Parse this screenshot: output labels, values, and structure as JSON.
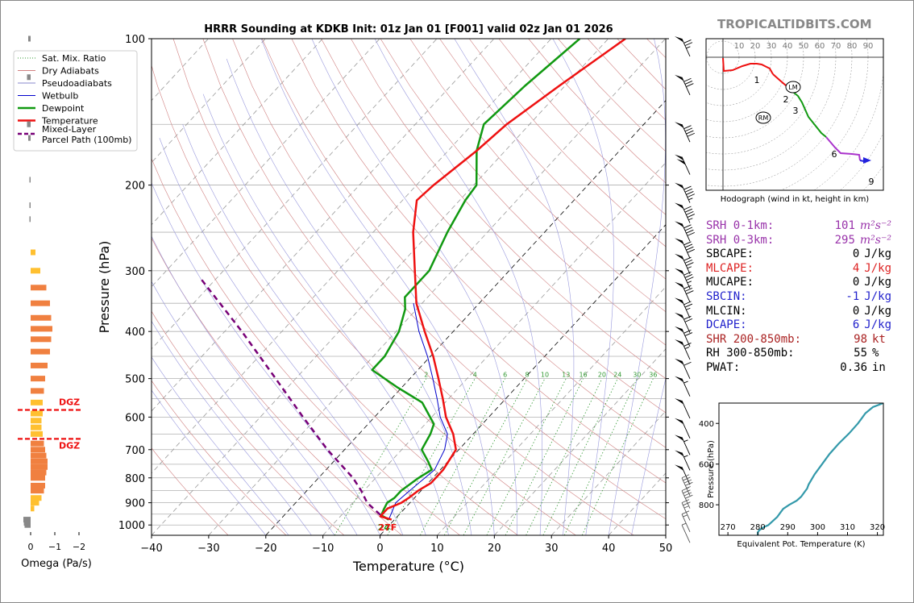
{
  "brand": "TROPICALTIDBITS.COM",
  "chart_data": {
    "type": "skewt",
    "title": "HRRR Sounding at KDKB Init: 01z Jan 01 [F001] valid 02z Jan 01 2026",
    "xlabel": "Temperature (°C)",
    "ylabel": "Pressure (hPa)",
    "xlim": [
      -40,
      50
    ],
    "ylim": [
      1050,
      100
    ],
    "x_ticks": [
      -40,
      -30,
      -20,
      -10,
      0,
      10,
      20,
      30,
      40,
      50
    ],
    "x_tick_labels": [
      "−40",
      "−30",
      "−20",
      "−10",
      "0",
      "10",
      "20",
      "30",
      "40",
      "50"
    ],
    "y_ticks": [
      100,
      200,
      300,
      400,
      500,
      600,
      700,
      800,
      900,
      1000
    ],
    "legend": [
      {
        "label": "Sat. Mix. Ratio",
        "color": "#339933",
        "style": "dotted"
      },
      {
        "label": "Dry Adiabats",
        "color": "#d08080",
        "style": "solid"
      },
      {
        "label": "Pseudoadiabats",
        "color": "#8888cc",
        "style": "solid"
      },
      {
        "label": "Wetbulb",
        "color": "#0000cc",
        "style": "solid"
      },
      {
        "label": "Dewpoint",
        "color": "#119911",
        "style": "solid"
      },
      {
        "label": "Temperature",
        "color": "#ee1111",
        "style": "solid"
      },
      {
        "label": "Mixed-Layer Parcel Path (100mb)",
        "color": "#770077",
        "style": "dashed"
      }
    ],
    "mixing_ratio_labels": [
      "2",
      "4",
      "6",
      "8",
      "10",
      "13",
      "16",
      "20",
      "24",
      "30",
      "36"
    ],
    "surface_td_label": "24",
    "surface_t_label": "27F",
    "temperature": {
      "p": [
        975,
        960,
        945,
        925,
        900,
        880,
        850,
        820,
        790,
        770,
        700,
        650,
        600,
        550,
        500,
        450,
        400,
        350,
        300,
        250,
        215,
        200,
        170,
        150,
        125,
        100
      ],
      "t": [
        -0.5,
        -3.0,
        -3.0,
        -3.0,
        -1.5,
        -1.0,
        -0.5,
        0.5,
        0.5,
        0.5,
        -0.5,
        -3.5,
        -7.5,
        -11.0,
        -15.0,
        -19.5,
        -25.0,
        -31.0,
        -36.5,
        -43.0,
        -47.5,
        -47.0,
        -45.0,
        -44.0,
        -41.0,
        -37.0
      ]
    },
    "dewpoint": {
      "p": [
        975,
        955,
        930,
        900,
        880,
        850,
        800,
        770,
        740,
        700,
        650,
        620,
        560,
        520,
        480,
        450,
        400,
        360,
        340,
        300,
        250,
        215,
        200,
        170,
        150,
        125,
        100
      ],
      "td": [
        -1.0,
        -3.0,
        -3.5,
        -4.0,
        -3.5,
        -3.5,
        -2.5,
        -1.5,
        -3.5,
        -6.5,
        -7.5,
        -8.5,
        -14.0,
        -21.0,
        -28.0,
        -28.0,
        -29.5,
        -32.0,
        -34.0,
        -34.0,
        -37.0,
        -39.0,
        -39.5,
        -45.0,
        -48.0,
        -47.0,
        -45.0
      ]
    },
    "wetbulb": {
      "p": [
        975,
        900,
        850,
        770,
        700,
        650,
        600,
        550,
        500,
        450,
        400,
        350
      ],
      "tw": [
        -1.0,
        -2.5,
        -2.0,
        -1.0,
        -2.5,
        -4.5,
        -8.5,
        -12.0,
        -16.0,
        -20.5,
        -26.0,
        -31.5
      ]
    },
    "parcel_path": {
      "p": [
        975,
        950,
        900,
        850,
        800,
        700,
        600,
        500,
        400,
        310
      ],
      "t": [
        -1.0,
        -3.5,
        -7.5,
        -10.5,
        -14.0,
        -23.0,
        -32.5,
        -43.5,
        -57.0,
        -73.0
      ]
    },
    "omega": {
      "xlabel": "Omega (Pa/s)",
      "x_ticks": [
        "0",
        "−1",
        "−2"
      ],
      "dgz_label": "DGZ",
      "dgz_levels": [
        580,
        665
      ],
      "bars": [
        [
          1000,
          0.25
        ],
        [
          990,
          0.28
        ],
        [
          975,
          0.3
        ],
        [
          925,
          -0.15
        ],
        [
          900,
          -0.35
        ],
        [
          880,
          -0.45
        ],
        [
          850,
          -0.55
        ],
        [
          830,
          -0.6
        ],
        [
          800,
          -0.6
        ],
        [
          780,
          -0.65
        ],
        [
          760,
          -0.7
        ],
        [
          740,
          -0.7
        ],
        [
          720,
          -0.65
        ],
        [
          700,
          -0.6
        ],
        [
          680,
          -0.55
        ],
        [
          650,
          -0.5
        ],
        [
          630,
          -0.45
        ],
        [
          610,
          -0.45
        ],
        [
          590,
          -0.5
        ],
        [
          560,
          -0.5
        ],
        [
          530,
          -0.55
        ],
        [
          500,
          -0.6
        ],
        [
          470,
          -0.7
        ],
        [
          440,
          -0.8
        ],
        [
          415,
          -0.85
        ],
        [
          395,
          -0.9
        ],
        [
          375,
          -0.85
        ],
        [
          350,
          -0.8
        ],
        [
          325,
          -0.65
        ],
        [
          300,
          -0.4
        ],
        [
          275,
          -0.2
        ],
        [
          235,
          0.05
        ],
        [
          220,
          0.05
        ],
        [
          195,
          0.05
        ],
        [
          160,
          0.1
        ],
        [
          150,
          0.15
        ],
        [
          120,
          0.15
        ],
        [
          100,
          0.1
        ]
      ]
    },
    "wind_barbs": [
      {
        "p": 100,
        "kt": 75,
        "color": "black"
      },
      {
        "p": 120,
        "kt": 80,
        "color": "black"
      },
      {
        "p": 150,
        "kt": 90,
        "color": "black"
      },
      {
        "p": 175,
        "kt": 100,
        "color": "black"
      },
      {
        "p": 200,
        "kt": 95,
        "color": "black"
      },
      {
        "p": 220,
        "kt": 95,
        "color": "black"
      },
      {
        "p": 240,
        "kt": 90,
        "color": "black"
      },
      {
        "p": 260,
        "kt": 90,
        "color": "black"
      },
      {
        "p": 280,
        "kt": 85,
        "color": "black"
      },
      {
        "p": 300,
        "kt": 85,
        "color": "black"
      },
      {
        "p": 320,
        "kt": 80,
        "color": "black"
      },
      {
        "p": 345,
        "kt": 75,
        "color": "black"
      },
      {
        "p": 370,
        "kt": 70,
        "color": "black"
      },
      {
        "p": 395,
        "kt": 70,
        "color": "black"
      },
      {
        "p": 420,
        "kt": 65,
        "color": "black"
      },
      {
        "p": 460,
        "kt": 60,
        "color": "black"
      },
      {
        "p": 500,
        "kt": 55,
        "color": "black"
      },
      {
        "p": 555,
        "kt": 50,
        "color": "black"
      },
      {
        "p": 610,
        "kt": 50,
        "color": "black"
      },
      {
        "p": 660,
        "kt": 55,
        "color": "black"
      },
      {
        "p": 710,
        "kt": 55,
        "color": "black"
      },
      {
        "p": 760,
        "kt": 50,
        "color": "black"
      },
      {
        "p": 800,
        "kt": 45,
        "color": "gray"
      },
      {
        "p": 850,
        "kt": 40,
        "color": "gray"
      },
      {
        "p": 900,
        "kt": 25,
        "color": "gray"
      },
      {
        "p": 950,
        "kt": 15,
        "color": "gray"
      },
      {
        "p": 1000,
        "kt": 5,
        "color": "gray"
      }
    ]
  },
  "hodograph": {
    "caption": "Hodograph (wind in kt, height in km)",
    "ring_labels": [
      "10",
      "20",
      "30",
      "40",
      "50",
      "60",
      "70",
      "80",
      "90"
    ],
    "height_labels": [
      "1",
      "2",
      "3",
      "6",
      "9"
    ],
    "storm_motion_labels": [
      "LM",
      "RM"
    ],
    "trace": [
      {
        "color": "#ee1111",
        "uv": [
          [
            0.0,
            -0.5
          ],
          [
            0.5,
            -8.5
          ],
          [
            6.0,
            -8.0
          ],
          [
            12.0,
            -5.5
          ],
          [
            17.0,
            -4.0
          ],
          [
            21.0,
            -4.0
          ],
          [
            24.0,
            -4.5
          ],
          [
            29.0,
            -7.0
          ],
          [
            31.0,
            -10.5
          ]
        ]
      },
      {
        "color": "#ee1111",
        "uv": [
          [
            31.0,
            -10.5
          ],
          [
            35.5,
            -14.5
          ],
          [
            39.0,
            -17.5
          ],
          [
            41.0,
            -19.5
          ]
        ]
      },
      {
        "color": "#119911",
        "uv": [
          [
            41.0,
            -19.5
          ],
          [
            46.5,
            -24.0
          ],
          [
            49.0,
            -28.0
          ],
          [
            53.0,
            -37.0
          ],
          [
            61.0,
            -47.0
          ],
          [
            64.0,
            -49.5
          ]
        ]
      },
      {
        "color": "#aa33cc",
        "uv": [
          [
            64.0,
            -49.5
          ],
          [
            69.5,
            -56.0
          ],
          [
            73.0,
            -59.5
          ],
          [
            80.0,
            -60.0
          ],
          [
            84.5,
            -60.5
          ],
          [
            85.0,
            -64.0
          ]
        ]
      },
      {
        "color": "#2222dd",
        "uv": [
          [
            85.0,
            -64.0
          ],
          [
            87.5,
            -64.5
          ]
        ]
      }
    ]
  },
  "theta_e_chart": {
    "type": "line",
    "xlabel": "Equivalent Pot. Temperature (K)",
    "ylabel": "Pressure (hPa)",
    "x_ticks": [
      270,
      280,
      290,
      300,
      310,
      320
    ],
    "y_ticks": [
      400,
      600,
      800
    ],
    "xlim": [
      267,
      322
    ],
    "ylim": [
      950,
      300
    ],
    "line_color": "#3399aa",
    "p": [
      950,
      935,
      925,
      910,
      900,
      880,
      860,
      840,
      820,
      800,
      780,
      760,
      740,
      720,
      700,
      650,
      600,
      550,
      500,
      450,
      400,
      380,
      350,
      320,
      300
    ],
    "theta_e": [
      280.0,
      280.0,
      280.5,
      282.0,
      283.5,
      285.0,
      286.5,
      287.5,
      288.5,
      290.5,
      293.0,
      294.5,
      295.5,
      296.5,
      297.0,
      299.0,
      301.5,
      304.0,
      307.0,
      310.5,
      313.5,
      314.5,
      316.0,
      318.5,
      322.0
    ]
  },
  "stats": [
    {
      "label": "SRH 0-1km:",
      "value": "101",
      "unit": "m²s⁻²",
      "color": "#9933aa"
    },
    {
      "label": "SRH 0-3km:",
      "value": "295",
      "unit": "m²s⁻²",
      "color": "#9933aa"
    },
    {
      "label": "SBCAPE:",
      "value": "0",
      "unit": "J/kg",
      "color": "#000000"
    },
    {
      "label": "MLCAPE:",
      "value": "4",
      "unit": "J/kg",
      "color": "#dd2222"
    },
    {
      "label": "MUCAPE:",
      "value": "0",
      "unit": "J/kg",
      "color": "#000000"
    },
    {
      "label": "SBCIN:",
      "value": "-1",
      "unit": "J/kg",
      "color": "#2222cc"
    },
    {
      "label": "MLCIN:",
      "value": "0",
      "unit": "J/kg",
      "color": "#000000"
    },
    {
      "label": "DCAPE:",
      "value": "6",
      "unit": "J/kg",
      "color": "#2222cc"
    },
    {
      "label": "SHR 200-850mb:",
      "value": "98",
      "unit": "kt",
      "color": "#aa2222"
    },
    {
      "label": "RH 300-850mb:",
      "value": "55",
      "unit": "%",
      "color": "#000000"
    },
    {
      "label": "PWAT:",
      "value": "0.36",
      "unit": "in",
      "color": "#000000"
    }
  ]
}
